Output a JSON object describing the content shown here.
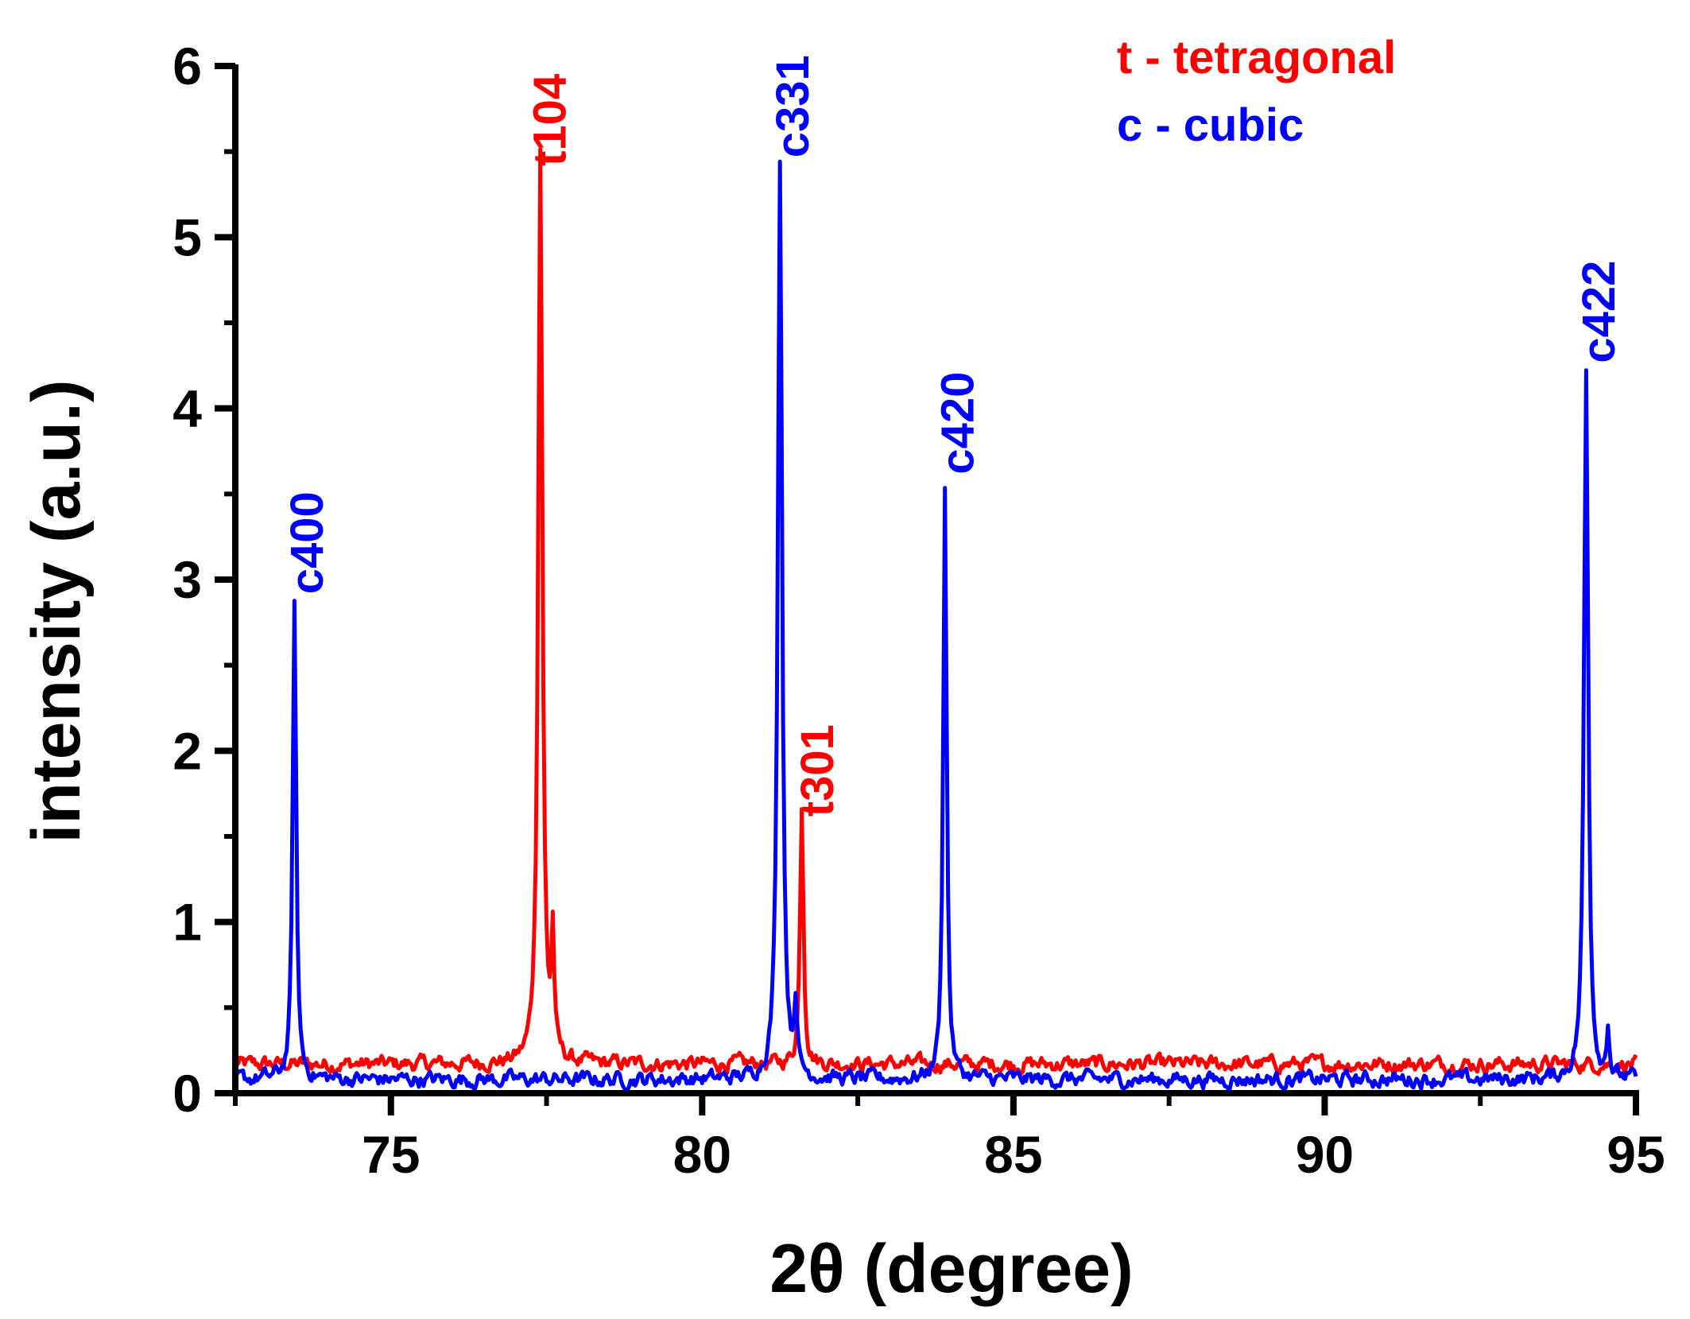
{
  "chart_data": {
    "type": "line",
    "xlabel": "2θ (degree)",
    "ylabel": "intensity (a.u.)",
    "xlim": [
      72.5,
      95
    ],
    "ylim": [
      0,
      6
    ],
    "x_ticks": [
      75,
      80,
      85,
      90,
      95
    ],
    "x_tick_labels": [
      "75",
      "80",
      "85",
      "90",
      "95"
    ],
    "y_ticks": [
      0,
      1,
      2,
      3,
      4,
      5,
      6
    ],
    "y_tick_labels": [
      "0",
      "1",
      "2",
      "3",
      "4",
      "5",
      "6"
    ],
    "legend": [
      {
        "text": "t - tetragonal",
        "color": "#ff0000"
      },
      {
        "text": "c - cubic",
        "color": "#0000ff"
      }
    ],
    "series": [
      {
        "name": "tetragonal",
        "color": "#ff0000",
        "baseline": 0.17,
        "peaks": [
          {
            "x": 77.4,
            "height": 5.35,
            "width": 0.06
          },
          {
            "x": 77.6,
            "height": 0.68,
            "width": 0.04
          },
          {
            "x": 81.6,
            "height": 1.52,
            "width": 0.05
          }
        ]
      },
      {
        "name": "cubic",
        "color": "#0000ff",
        "baseline": 0.08,
        "peaks": [
          {
            "x": 73.45,
            "height": 2.78,
            "width": 0.05
          },
          {
            "x": 81.25,
            "height": 5.4,
            "width": 0.06
          },
          {
            "x": 81.5,
            "height": 0.42,
            "width": 0.04
          },
          {
            "x": 83.9,
            "height": 3.47,
            "width": 0.05
          },
          {
            "x": 94.2,
            "height": 4.13,
            "width": 0.06
          },
          {
            "x": 94.55,
            "height": 0.3,
            "width": 0.04
          }
        ]
      }
    ],
    "annotations": [
      {
        "text": "t104",
        "x": 77.55,
        "y": 5.35,
        "color": "#ff0000"
      },
      {
        "text": "c331",
        "x": 81.45,
        "y": 5.4,
        "color": "#0000ff"
      },
      {
        "text": "t301",
        "x": 81.85,
        "y": 1.55,
        "color": "#ff0000"
      },
      {
        "text": "c400",
        "x": 73.65,
        "y": 2.85,
        "color": "#0000ff"
      },
      {
        "text": "c420",
        "x": 84.1,
        "y": 3.55,
        "color": "#0000ff"
      },
      {
        "text": "c422",
        "x": 94.4,
        "y": 4.2,
        "color": "#0000ff"
      }
    ]
  }
}
